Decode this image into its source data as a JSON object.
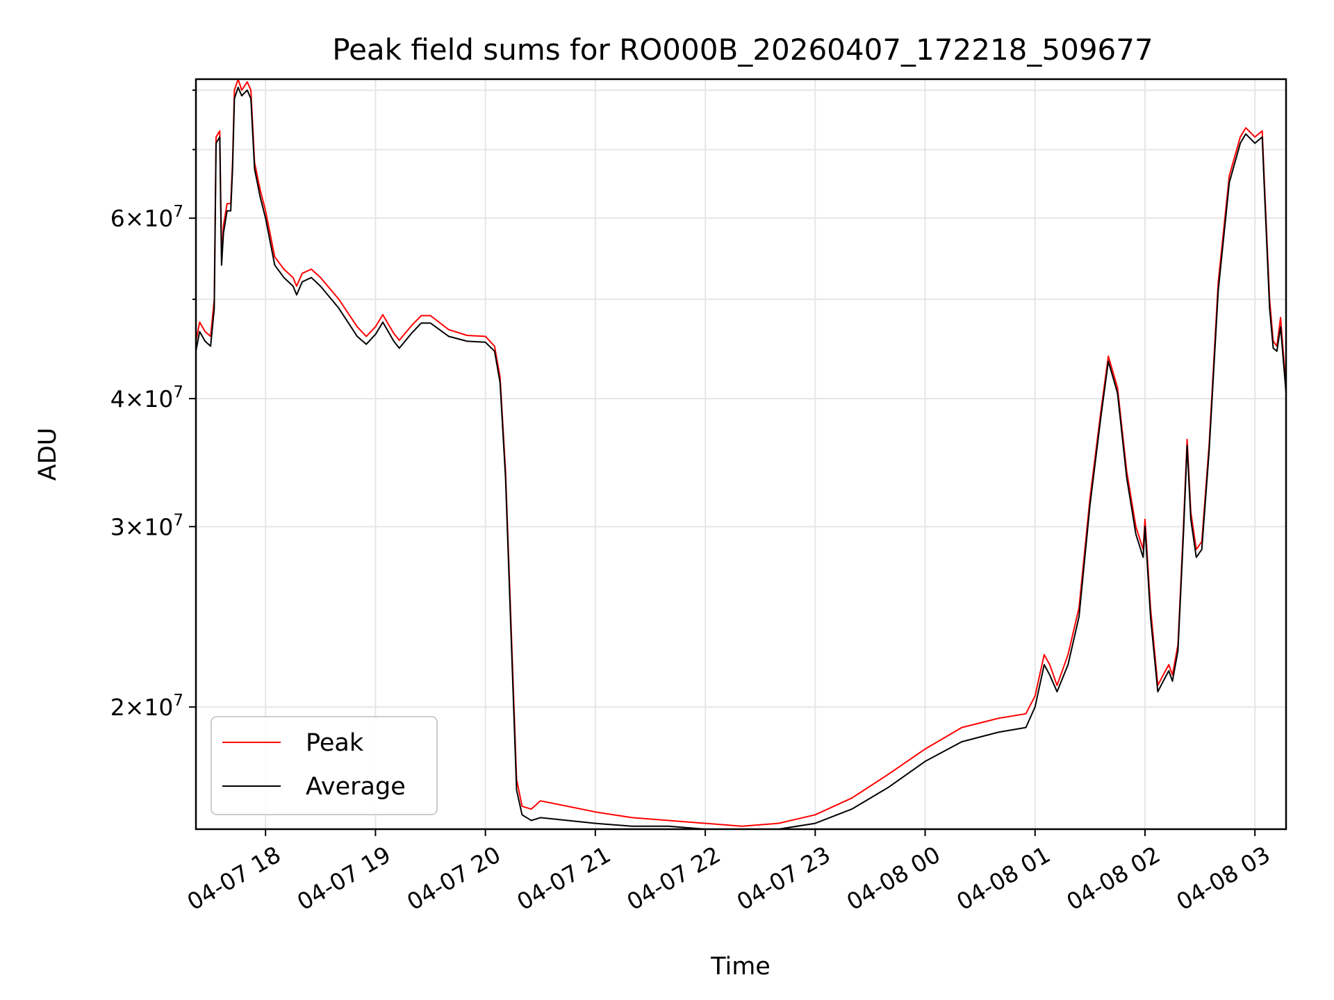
{
  "chart_data": {
    "type": "line",
    "title": "Peak field sums for RO000B_20260407_172218_509677",
    "xlabel": "Time",
    "ylabel": "ADU",
    "y_scale": "log",
    "grid": true,
    "legend_position": "lower-left",
    "x_start": "2026-04-07 17:22",
    "x_end": "2026-04-08 03:17",
    "xlim": [
      "2026-04-07 17:22",
      "2026-04-08 03:17"
    ],
    "ylim": [
      15200000,
      82000000
    ],
    "x_ticks": [
      {
        "value": "2026-04-07 18:00",
        "label": "04-07 18"
      },
      {
        "value": "2026-04-07 19:00",
        "label": "04-07 19"
      },
      {
        "value": "2026-04-07 20:00",
        "label": "04-07 20"
      },
      {
        "value": "2026-04-07 21:00",
        "label": "04-07 21"
      },
      {
        "value": "2026-04-07 22:00",
        "label": "04-07 22"
      },
      {
        "value": "2026-04-07 23:00",
        "label": "04-07 23"
      },
      {
        "value": "2026-04-08 00:00",
        "label": "04-08 00"
      },
      {
        "value": "2026-04-08 01:00",
        "label": "04-08 01"
      },
      {
        "value": "2026-04-08 02:00",
        "label": "04-08 02"
      },
      {
        "value": "2026-04-08 03:00",
        "label": "04-08 03"
      }
    ],
    "y_ticks": [
      {
        "value": 20000000,
        "mantissa": "2",
        "base": "10",
        "exp": "7"
      },
      {
        "value": 30000000,
        "mantissa": "3",
        "base": "10",
        "exp": "7"
      },
      {
        "value": 40000000,
        "mantissa": "4",
        "base": "10",
        "exp": "7"
      },
      {
        "value": 60000000,
        "mantissa": "6",
        "base": "10",
        "exp": "7"
      }
    ],
    "y_minor_gridlines": [
      50000000,
      70000000,
      80000000
    ],
    "series": [
      {
        "name": "Peak",
        "color": "#ff0000",
        "points": [
          [
            "2026-04-07 17:22",
            45500000
          ],
          [
            "2026-04-07 17:24",
            47500000
          ],
          [
            "2026-04-07 17:27",
            46500000
          ],
          [
            "2026-04-07 17:30",
            46000000
          ],
          [
            "2026-04-07 17:32",
            50000000
          ],
          [
            "2026-04-07 17:33",
            72000000
          ],
          [
            "2026-04-07 17:35",
            73000000
          ],
          [
            "2026-04-07 17:36",
            55000000
          ],
          [
            "2026-04-07 17:37",
            59000000
          ],
          [
            "2026-04-07 17:39",
            62000000
          ],
          [
            "2026-04-07 17:41",
            62000000
          ],
          [
            "2026-04-07 17:42",
            68000000
          ],
          [
            "2026-04-07 17:43",
            80000000
          ],
          [
            "2026-04-07 17:45",
            82000000
          ],
          [
            "2026-04-07 17:47",
            80000000
          ],
          [
            "2026-04-07 17:50",
            81500000
          ],
          [
            "2026-04-07 17:52",
            80000000
          ],
          [
            "2026-04-07 17:54",
            68000000
          ],
          [
            "2026-04-07 17:57",
            64000000
          ],
          [
            "2026-04-07 18:00",
            61000000
          ],
          [
            "2026-04-07 18:05",
            55000000
          ],
          [
            "2026-04-07 18:10",
            53500000
          ],
          [
            "2026-04-07 18:15",
            52500000
          ],
          [
            "2026-04-07 18:17",
            51500000
          ],
          [
            "2026-04-07 18:20",
            53000000
          ],
          [
            "2026-04-07 18:25",
            53500000
          ],
          [
            "2026-04-07 18:30",
            52500000
          ],
          [
            "2026-04-07 18:40",
            50000000
          ],
          [
            "2026-04-07 18:50",
            47000000
          ],
          [
            "2026-04-07 18:55",
            46000000
          ],
          [
            "2026-04-07 19:00",
            47000000
          ],
          [
            "2026-04-07 19:04",
            48300000
          ],
          [
            "2026-04-07 19:10",
            46300000
          ],
          [
            "2026-04-07 19:13",
            45600000
          ],
          [
            "2026-04-07 19:20",
            47200000
          ],
          [
            "2026-04-07 19:25",
            48200000
          ],
          [
            "2026-04-07 19:30",
            48200000
          ],
          [
            "2026-04-07 19:40",
            46700000
          ],
          [
            "2026-04-07 19:50",
            46100000
          ],
          [
            "2026-04-07 20:00",
            46000000
          ],
          [
            "2026-04-07 20:05",
            45000000
          ],
          [
            "2026-04-07 20:08",
            42000000
          ],
          [
            "2026-04-07 20:11",
            34000000
          ],
          [
            "2026-04-07 20:14",
            24000000
          ],
          [
            "2026-04-07 20:17",
            17000000
          ],
          [
            "2026-04-07 20:20",
            16000000
          ],
          [
            "2026-04-07 20:25",
            15900000
          ],
          [
            "2026-04-07 20:30",
            16200000
          ],
          [
            "2026-04-07 20:45",
            16000000
          ],
          [
            "2026-04-07 21:00",
            15800000
          ],
          [
            "2026-04-07 21:20",
            15600000
          ],
          [
            "2026-04-07 21:40",
            15500000
          ],
          [
            "2026-04-07 22:00",
            15400000
          ],
          [
            "2026-04-07 22:20",
            15300000
          ],
          [
            "2026-04-07 22:40",
            15400000
          ],
          [
            "2026-04-07 23:00",
            15700000
          ],
          [
            "2026-04-07 23:20",
            16300000
          ],
          [
            "2026-04-07 23:40",
            17200000
          ],
          [
            "2026-04-08 00:00",
            18200000
          ],
          [
            "2026-04-08 00:20",
            19100000
          ],
          [
            "2026-04-08 00:40",
            19500000
          ],
          [
            "2026-04-08 00:55",
            19700000
          ],
          [
            "2026-04-08 01:00",
            20500000
          ],
          [
            "2026-04-08 01:05",
            22500000
          ],
          [
            "2026-04-08 01:08",
            22000000
          ],
          [
            "2026-04-08 01:12",
            21000000
          ],
          [
            "2026-04-08 01:18",
            22500000
          ],
          [
            "2026-04-08 01:24",
            25000000
          ],
          [
            "2026-04-08 01:30",
            32000000
          ],
          [
            "2026-04-08 01:36",
            39000000
          ],
          [
            "2026-04-08 01:40",
            44000000
          ],
          [
            "2026-04-08 01:45",
            41000000
          ],
          [
            "2026-04-08 01:50",
            34000000
          ],
          [
            "2026-04-08 01:55",
            30000000
          ],
          [
            "2026-04-08 01:59",
            28500000
          ],
          [
            "2026-04-08 02:00",
            30500000
          ],
          [
            "2026-04-08 02:03",
            25000000
          ],
          [
            "2026-04-08 02:07",
            21000000
          ],
          [
            "2026-04-08 02:10",
            21500000
          ],
          [
            "2026-04-08 02:13",
            22000000
          ],
          [
            "2026-04-08 02:15",
            21500000
          ],
          [
            "2026-04-08 02:18",
            23000000
          ],
          [
            "2026-04-08 02:21",
            30000000
          ],
          [
            "2026-04-08 02:23",
            36500000
          ],
          [
            "2026-04-08 02:25",
            31000000
          ],
          [
            "2026-04-08 02:28",
            28500000
          ],
          [
            "2026-04-08 02:31",
            29000000
          ],
          [
            "2026-04-08 02:35",
            36000000
          ],
          [
            "2026-04-08 02:40",
            52000000
          ],
          [
            "2026-04-08 02:46",
            66000000
          ],
          [
            "2026-04-08 02:52",
            72000000
          ],
          [
            "2026-04-08 02:55",
            73500000
          ],
          [
            "2026-04-08 03:00",
            72000000
          ],
          [
            "2026-04-08 03:04",
            73000000
          ],
          [
            "2026-04-08 03:05",
            66000000
          ],
          [
            "2026-04-08 03:08",
            50000000
          ],
          [
            "2026-04-08 03:10",
            45500000
          ],
          [
            "2026-04-08 03:12",
            45000000
          ],
          [
            "2026-04-08 03:14",
            48000000
          ],
          [
            "2026-04-08 03:17",
            41000000
          ]
        ]
      },
      {
        "name": "Average",
        "color": "#000000",
        "points": [
          [
            "2026-04-07 17:22",
            44500000
          ],
          [
            "2026-04-07 17:24",
            46500000
          ],
          [
            "2026-04-07 17:27",
            45500000
          ],
          [
            "2026-04-07 17:30",
            45000000
          ],
          [
            "2026-04-07 17:32",
            49000000
          ],
          [
            "2026-04-07 17:33",
            71000000
          ],
          [
            "2026-04-07 17:35",
            72000000
          ],
          [
            "2026-04-07 17:36",
            54000000
          ],
          [
            "2026-04-07 17:37",
            58000000
          ],
          [
            "2026-04-07 17:39",
            61000000
          ],
          [
            "2026-04-07 17:41",
            61000000
          ],
          [
            "2026-04-07 17:42",
            67000000
          ],
          [
            "2026-04-07 17:43",
            78500000
          ],
          [
            "2026-04-07 17:45",
            80500000
          ],
          [
            "2026-04-07 17:47",
            79000000
          ],
          [
            "2026-04-07 17:50",
            80000000
          ],
          [
            "2026-04-07 17:52",
            78500000
          ],
          [
            "2026-04-07 17:54",
            67000000
          ],
          [
            "2026-04-07 17:57",
            63000000
          ],
          [
            "2026-04-07 18:00",
            60000000
          ],
          [
            "2026-04-07 18:05",
            54000000
          ],
          [
            "2026-04-07 18:10",
            52500000
          ],
          [
            "2026-04-07 18:15",
            51500000
          ],
          [
            "2026-04-07 18:17",
            50500000
          ],
          [
            "2026-04-07 18:20",
            52000000
          ],
          [
            "2026-04-07 18:25",
            52500000
          ],
          [
            "2026-04-07 18:30",
            51500000
          ],
          [
            "2026-04-07 18:40",
            49000000
          ],
          [
            "2026-04-07 18:50",
            46000000
          ],
          [
            "2026-04-07 18:55",
            45200000
          ],
          [
            "2026-04-07 19:00",
            46200000
          ],
          [
            "2026-04-07 19:04",
            47500000
          ],
          [
            "2026-04-07 19:10",
            45500000
          ],
          [
            "2026-04-07 19:13",
            44800000
          ],
          [
            "2026-04-07 19:20",
            46400000
          ],
          [
            "2026-04-07 19:25",
            47400000
          ],
          [
            "2026-04-07 19:30",
            47400000
          ],
          [
            "2026-04-07 19:40",
            46000000
          ],
          [
            "2026-04-07 19:50",
            45500000
          ],
          [
            "2026-04-07 20:00",
            45400000
          ],
          [
            "2026-04-07 20:05",
            44500000
          ],
          [
            "2026-04-07 20:08",
            41500000
          ],
          [
            "2026-04-07 20:11",
            33500000
          ],
          [
            "2026-04-07 20:14",
            23500000
          ],
          [
            "2026-04-07 20:17",
            16600000
          ],
          [
            "2026-04-07 20:20",
            15700000
          ],
          [
            "2026-04-07 20:25",
            15500000
          ],
          [
            "2026-04-07 20:30",
            15600000
          ],
          [
            "2026-04-07 20:45",
            15500000
          ],
          [
            "2026-04-07 21:00",
            15400000
          ],
          [
            "2026-04-07 21:20",
            15300000
          ],
          [
            "2026-04-07 21:40",
            15300000
          ],
          [
            "2026-04-07 22:00",
            15200000
          ],
          [
            "2026-04-07 22:20",
            15200000
          ],
          [
            "2026-04-07 22:40",
            15200000
          ],
          [
            "2026-04-07 23:00",
            15400000
          ],
          [
            "2026-04-07 23:20",
            15900000
          ],
          [
            "2026-04-07 23:40",
            16700000
          ],
          [
            "2026-04-08 00:00",
            17700000
          ],
          [
            "2026-04-08 00:20",
            18500000
          ],
          [
            "2026-04-08 00:40",
            18900000
          ],
          [
            "2026-04-08 00:55",
            19100000
          ],
          [
            "2026-04-08 01:00",
            20000000
          ],
          [
            "2026-04-08 01:05",
            22000000
          ],
          [
            "2026-04-08 01:08",
            21500000
          ],
          [
            "2026-04-08 01:12",
            20700000
          ],
          [
            "2026-04-08 01:18",
            22000000
          ],
          [
            "2026-04-08 01:24",
            24500000
          ],
          [
            "2026-04-08 01:30",
            31500000
          ],
          [
            "2026-04-08 01:36",
            38500000
          ],
          [
            "2026-04-08 01:40",
            43500000
          ],
          [
            "2026-04-08 01:45",
            40500000
          ],
          [
            "2026-04-08 01:50",
            33500000
          ],
          [
            "2026-04-08 01:55",
            29500000
          ],
          [
            "2026-04-08 01:59",
            28000000
          ],
          [
            "2026-04-08 02:00",
            30000000
          ],
          [
            "2026-04-08 02:03",
            24500000
          ],
          [
            "2026-04-08 02:07",
            20700000
          ],
          [
            "2026-04-08 02:10",
            21200000
          ],
          [
            "2026-04-08 02:13",
            21700000
          ],
          [
            "2026-04-08 02:15",
            21200000
          ],
          [
            "2026-04-08 02:18",
            22700000
          ],
          [
            "2026-04-08 02:21",
            29500000
          ],
          [
            "2026-04-08 02:23",
            36000000
          ],
          [
            "2026-04-08 02:25",
            30500000
          ],
          [
            "2026-04-08 02:28",
            28000000
          ],
          [
            "2026-04-08 02:31",
            28500000
          ],
          [
            "2026-04-08 02:35",
            35500000
          ],
          [
            "2026-04-08 02:40",
            51000000
          ],
          [
            "2026-04-08 02:46",
            65000000
          ],
          [
            "2026-04-08 02:52",
            71000000
          ],
          [
            "2026-04-08 02:55",
            72500000
          ],
          [
            "2026-04-08 03:00",
            71000000
          ],
          [
            "2026-04-08 03:04",
            72000000
          ],
          [
            "2026-04-08 03:05",
            65000000
          ],
          [
            "2026-04-08 03:08",
            49000000
          ],
          [
            "2026-04-08 03:10",
            44800000
          ],
          [
            "2026-04-08 03:12",
            44500000
          ],
          [
            "2026-04-08 03:14",
            47000000
          ],
          [
            "2026-04-08 03:17",
            40500000
          ]
        ]
      }
    ]
  }
}
